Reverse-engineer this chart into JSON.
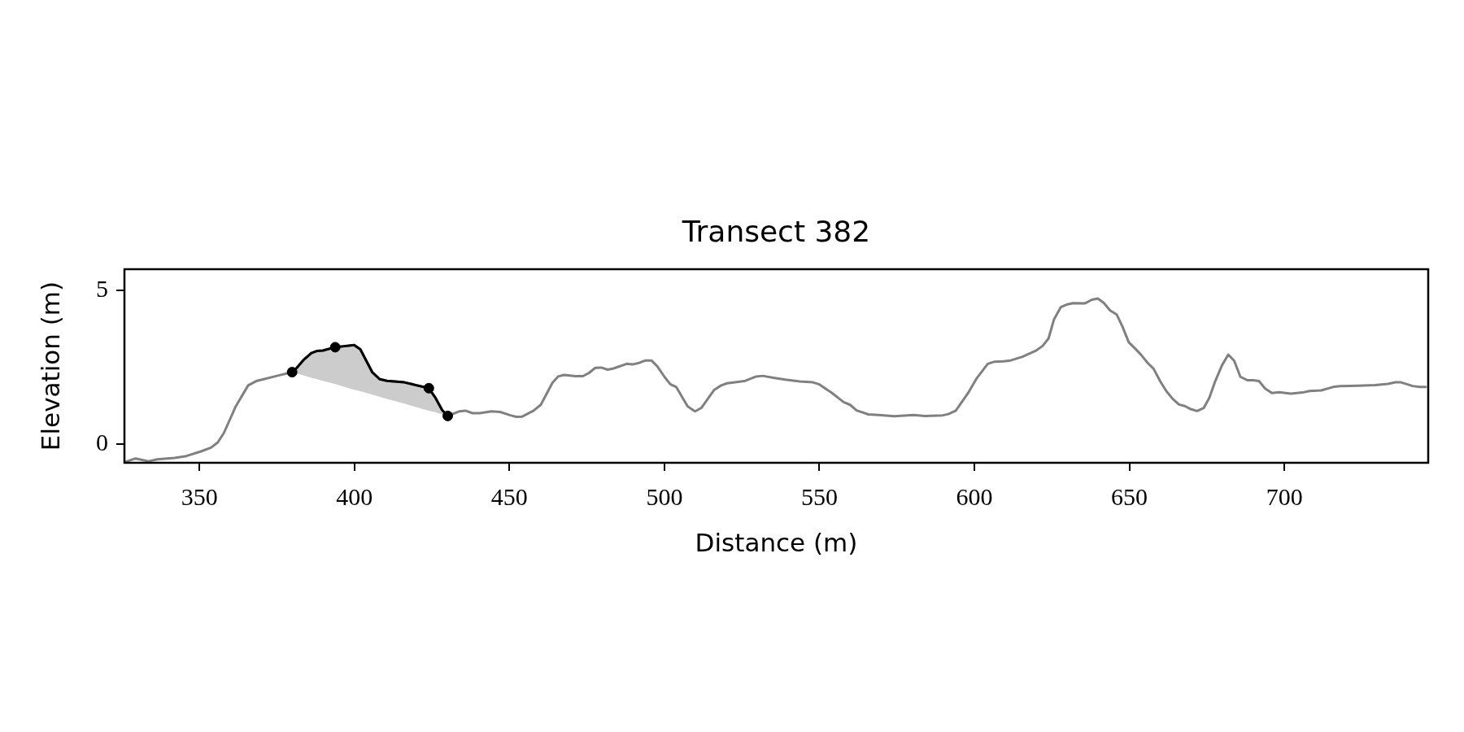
{
  "chart_data": {
    "type": "line",
    "title": "Transect 382",
    "xlabel": "Distance (m)",
    "ylabel": "Elevation (m)",
    "xlim": [
      325.8,
      746.4
    ],
    "ylim": [
      -0.6,
      5.68
    ],
    "xticks": [
      350,
      400,
      450,
      500,
      550,
      600,
      650,
      700
    ],
    "yticks": [
      0,
      5
    ],
    "grid": false,
    "legend": false,
    "series": [
      {
        "color": "#808080",
        "marker": "none",
        "line_style": "solid",
        "x": [
          325.8,
          329.4,
          333.6,
          336.4,
          342,
          345.8,
          350.5,
          353.7,
          355.9,
          357.9,
          361.7,
          365.7,
          368.3,
          375.8,
          379.9,
          381.4,
          383.7,
          386.1,
          388,
          389.8,
          393.8,
          399.9,
          401.9,
          405.8,
          408.2,
          410.5,
          416.1,
          424,
          426,
          428.3,
          430.1,
          433.9,
          435.8,
          438.1,
          440.4,
          444.2,
          447,
          450.3,
          452.2,
          454.1,
          457.8,
          460.1,
          463.9,
          465.7,
          467.6,
          471.3,
          473.7,
          475.6,
          477.7,
          479.6,
          481.7,
          483.6,
          487.8,
          489.7,
          491.5,
          493.9,
          495.8,
          497.7,
          500,
          501.9,
          503.8,
          507.5,
          509.9,
          511.9,
          516,
          518.3,
          520.2,
          525.8,
          529.6,
          531.7,
          535.2,
          539,
          543.7,
          547.9,
          549.8,
          554,
          557.8,
          559.9,
          562,
          565.8,
          569.1,
          574.2,
          580.4,
          584.1,
          589.8,
          591.6,
          594,
          598.2,
          600.6,
          604.3,
          606.5,
          609.4,
          611.7,
          615.5,
          619.7,
          622,
          623.9,
          625.7,
          627.9,
          630,
          631.8,
          635.6,
          637.9,
          639.8,
          641.7,
          643.8,
          645.9,
          647.8,
          649.8,
          652,
          653.8,
          655.9,
          657.8,
          659.9,
          661.8,
          663.9,
          666,
          667.9,
          669.8,
          671.8,
          674,
          675.8,
          677.7,
          679.9,
          681.9,
          683.8,
          685.8,
          688,
          689.9,
          691.8,
          693.8,
          696,
          698.3,
          702.1,
          705.8,
          708.1,
          711.9,
          716.1,
          718,
          723.6,
          729.2,
          733.4,
          735.8,
          737.6,
          741.4,
          743.7,
          745.6
        ],
        "values": [
          -0.58,
          -0.46,
          -0.55,
          -0.49,
          -0.44,
          -0.38,
          -0.23,
          -0.11,
          0.06,
          0.37,
          1.23,
          1.91,
          2.05,
          2.24,
          2.34,
          2.48,
          2.75,
          2.96,
          3.03,
          3.04,
          3.15,
          3.22,
          3.08,
          2.33,
          2.11,
          2.06,
          2.01,
          1.82,
          1.53,
          1.11,
          0.92,
          1.07,
          1.09,
          1.01,
          1.01,
          1.07,
          1.05,
          0.94,
          0.89,
          0.9,
          1.09,
          1.28,
          2.0,
          2.2,
          2.25,
          2.21,
          2.21,
          2.31,
          2.48,
          2.49,
          2.42,
          2.46,
          2.61,
          2.59,
          2.63,
          2.72,
          2.72,
          2.53,
          2.19,
          1.95,
          1.86,
          1.23,
          1.07,
          1.18,
          1.76,
          1.91,
          1.98,
          2.05,
          2.2,
          2.22,
          2.16,
          2.1,
          2.04,
          2.01,
          1.95,
          1.67,
          1.37,
          1.28,
          1.1,
          0.97,
          0.95,
          0.91,
          0.95,
          0.92,
          0.94,
          0.98,
          1.09,
          1.7,
          2.12,
          2.61,
          2.68,
          2.69,
          2.72,
          2.84,
          3.03,
          3.19,
          3.43,
          4.06,
          4.45,
          4.54,
          4.58,
          4.57,
          4.69,
          4.73,
          4.59,
          4.34,
          4.21,
          3.81,
          3.31,
          3.09,
          2.9,
          2.64,
          2.45,
          2.05,
          1.74,
          1.48,
          1.29,
          1.24,
          1.14,
          1.08,
          1.18,
          1.51,
          2.05,
          2.57,
          2.91,
          2.71,
          2.19,
          2.08,
          2.08,
          2.05,
          1.81,
          1.66,
          1.69,
          1.64,
          1.68,
          1.73,
          1.75,
          1.87,
          1.89,
          1.9,
          1.92,
          1.96,
          2.01,
          2.01,
          1.89,
          1.86,
          1.86
        ]
      },
      {
        "color": "#000000",
        "marker": "none",
        "line_style": "solid",
        "x": [
          379.9,
          381.4,
          383.7,
          386.1,
          388,
          389.8,
          393.8,
          399.9,
          401.9,
          405.8,
          408.2,
          410.5,
          416.1,
          424,
          426,
          428.3,
          430.1
        ],
        "values": [
          2.34,
          2.48,
          2.75,
          2.96,
          3.03,
          3.04,
          3.15,
          3.22,
          3.08,
          2.33,
          2.11,
          2.06,
          2.01,
          1.82,
          1.53,
          1.11,
          0.92
        ],
        "lower": [
          2.34,
          2.3,
          2.23,
          2.16,
          2.11,
          2.06,
          1.95,
          1.77,
          1.72,
          1.61,
          1.54,
          1.47,
          1.32,
          1.09,
          1.04,
          0.97,
          0.92
        ],
        "upper": [
          2.34,
          2.48,
          2.75,
          2.96,
          3.03,
          3.04,
          3.15,
          3.22,
          3.08,
          2.33,
          2.11,
          2.06,
          2.01,
          1.82,
          1.53,
          1.11,
          0.92
        ]
      },
      {
        "type": "scatter",
        "color": "#000000",
        "marker": "circle",
        "x": [
          379.9,
          393.8,
          424,
          430.1
        ],
        "values": [
          2.34,
          3.15,
          1.82,
          0.92
        ]
      }
    ]
  }
}
